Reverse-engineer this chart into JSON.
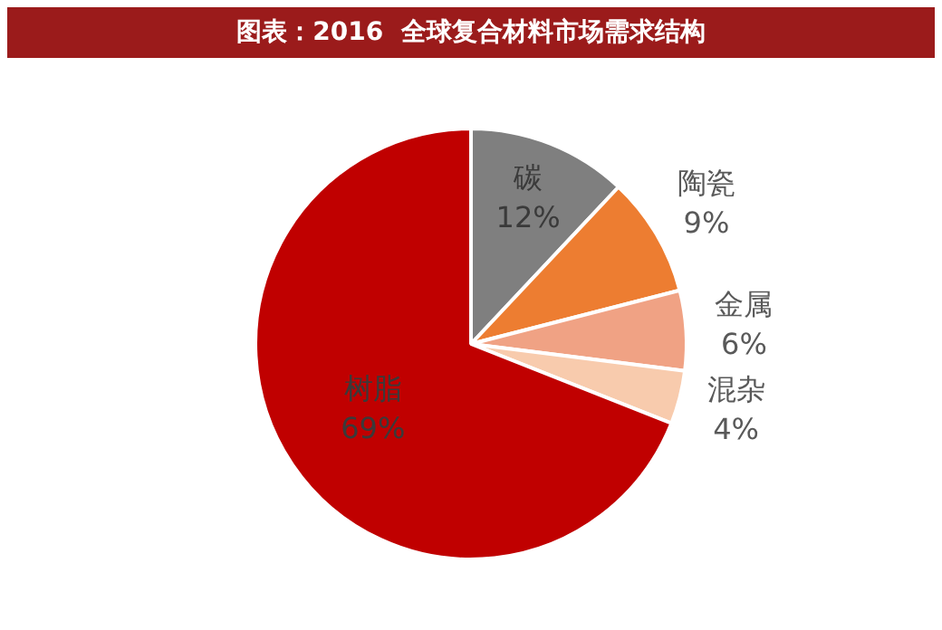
{
  "chart_data": {
    "type": "pie",
    "title": "图表：2016  全球复合材料市场需求结构",
    "categories": [
      "碳",
      "陶瓷",
      "金属",
      "混杂",
      "树脂"
    ],
    "values": [
      12,
      9,
      6,
      4,
      69
    ],
    "value_labels": [
      "12%",
      "9%",
      "6%",
      "4%",
      "69%"
    ],
    "colors": [
      "#7f7f7f",
      "#ed7d31",
      "#f0a284",
      "#f8cbad",
      "#c00000"
    ],
    "legend": false
  }
}
